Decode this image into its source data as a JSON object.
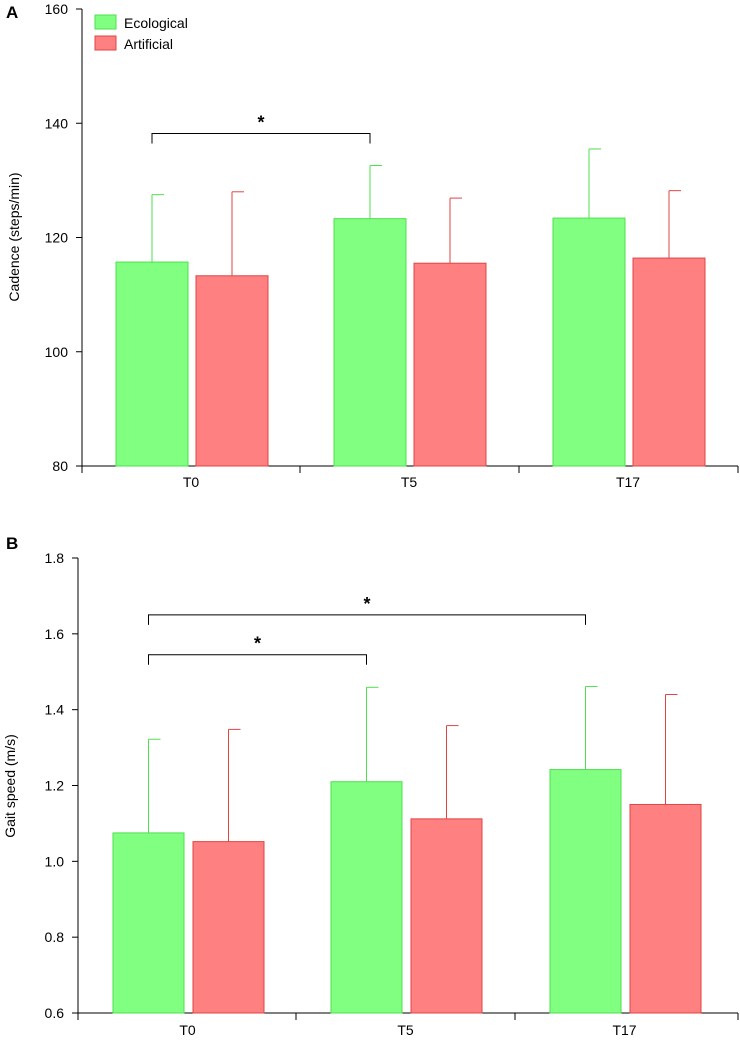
{
  "chart_data": [
    {
      "type": "bar",
      "panel_label": "A",
      "title": "",
      "xlabel": "",
      "ylabel": "Cadence (steps/min)",
      "ylim": [
        80,
        160
      ],
      "yticks": [
        80,
        100,
        120,
        140,
        160
      ],
      "ytick_labels": [
        "80",
        "100",
        "120",
        "140",
        "160"
      ],
      "categories": [
        "T0",
        "T5",
        "T17"
      ],
      "series": [
        {
          "name": "Ecological",
          "color": "#80ff80",
          "edge": "#4ee04e",
          "values": [
            115.7,
            123.3,
            123.4
          ],
          "errors": [
            11.8,
            9.3,
            12.1
          ]
        },
        {
          "name": "Artificial",
          "color": "#ff8080",
          "edge": "#e04545",
          "values": [
            113.3,
            115.5,
            116.4
          ],
          "errors": [
            14.7,
            11.4,
            11.8
          ]
        }
      ],
      "legend": {
        "position": "top-left",
        "entries": [
          "Ecological",
          "Artificial"
        ]
      },
      "significance": [
        {
          "from": "T0",
          "to": "T5",
          "y": 138.2,
          "label": "*"
        }
      ]
    },
    {
      "type": "bar",
      "panel_label": "B",
      "title": "",
      "xlabel": "",
      "ylabel": "Gait speed (m/s)",
      "ylim": [
        0.6,
        1.8
      ],
      "yticks": [
        0.6,
        0.8,
        1.0,
        1.2,
        1.4,
        1.6,
        1.8
      ],
      "ytick_labels": [
        "0.6",
        "0.8",
        "1.0",
        "1.2",
        "1.4",
        "1.6",
        "1.8"
      ],
      "categories": [
        "T0",
        "T5",
        "T17"
      ],
      "series": [
        {
          "name": "Ecological",
          "color": "#80ff80",
          "edge": "#4ee04e",
          "values": [
            1.075,
            1.21,
            1.242
          ],
          "errors": [
            0.247,
            0.249,
            0.219
          ]
        },
        {
          "name": "Artificial",
          "color": "#ff8080",
          "edge": "#e04545",
          "values": [
            1.052,
            1.112,
            1.15
          ],
          "errors": [
            0.296,
            0.246,
            0.29
          ]
        }
      ],
      "significance": [
        {
          "from": "T0",
          "to": "T17",
          "y": 1.65,
          "label": "*"
        },
        {
          "from": "T0",
          "to": "T5",
          "y": 1.545,
          "label": "*"
        }
      ]
    }
  ]
}
